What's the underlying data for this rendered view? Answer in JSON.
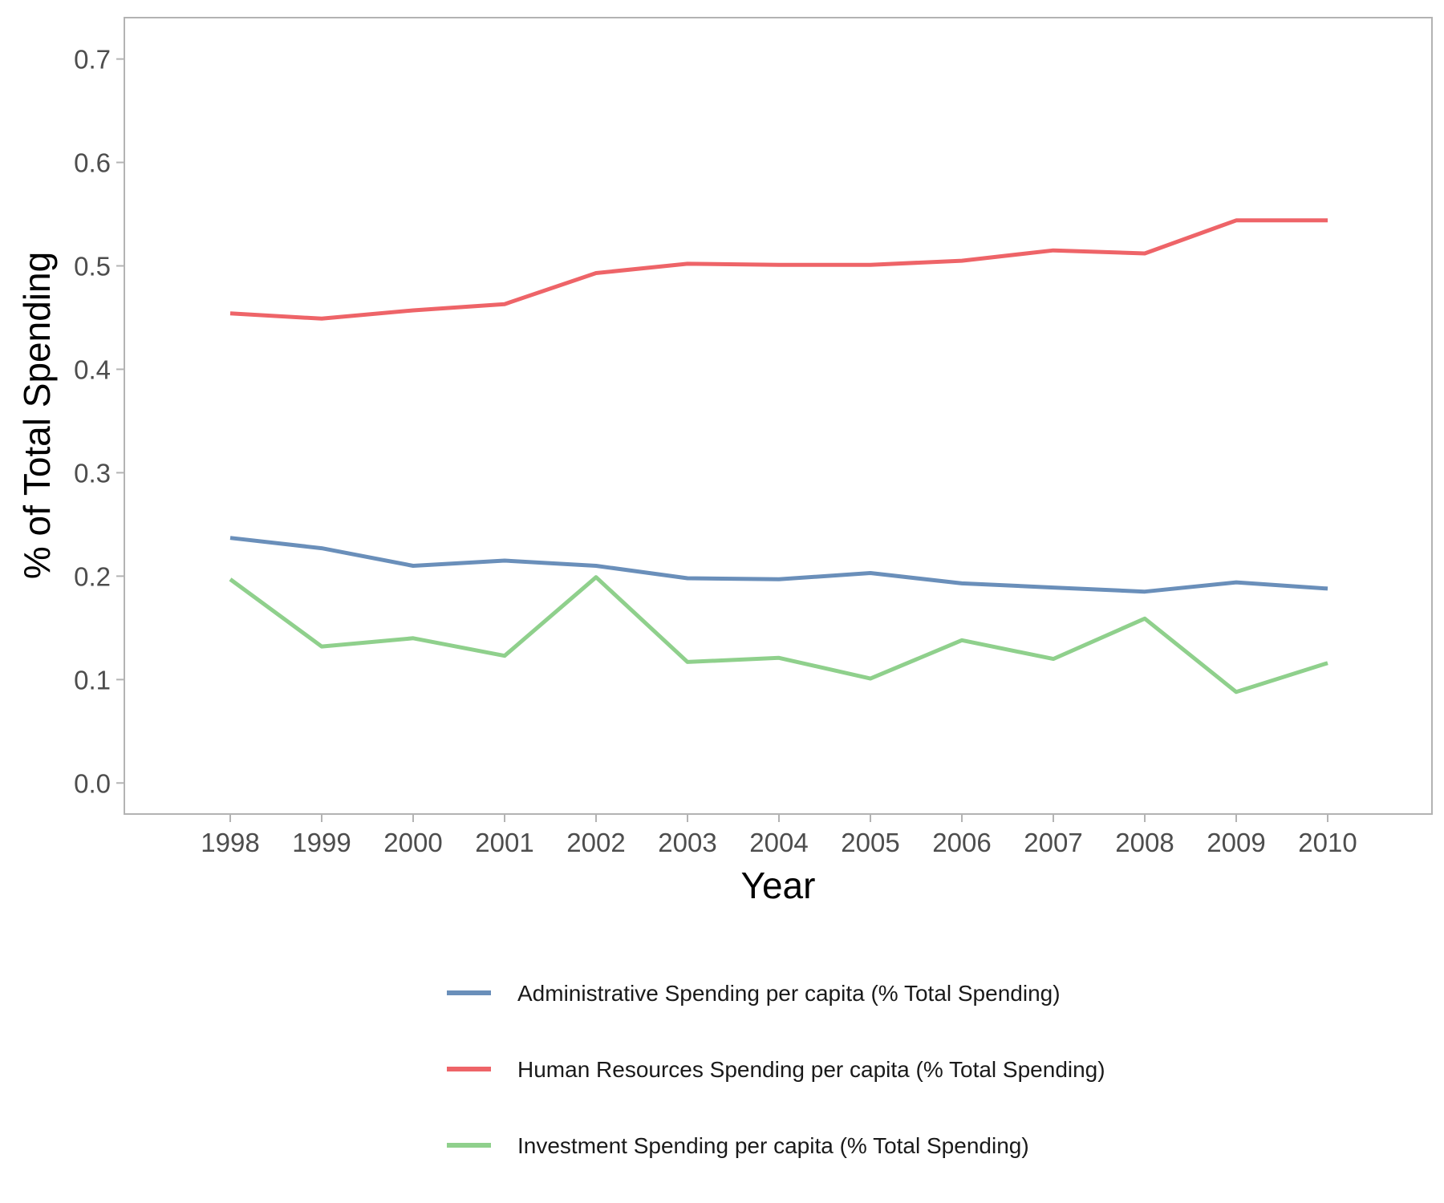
{
  "chart_data": {
    "type": "line",
    "title": "",
    "xlabel": "Year",
    "ylabel": "% of Total Spending",
    "x": [
      "1998",
      "1999",
      "2000",
      "2001",
      "2002",
      "2003",
      "2004",
      "2005",
      "2006",
      "2007",
      "2008",
      "2009",
      "2010"
    ],
    "ylim": [
      -0.03,
      0.74
    ],
    "yticks": [
      "0.0",
      "0.1",
      "0.2",
      "0.3",
      "0.4",
      "0.5",
      "0.6",
      "0.7"
    ],
    "grid": false,
    "legend_position": "bottom",
    "series": [
      {
        "name": "Administrative Spending per capita (% Total Spending)",
        "color": "#6a8fba",
        "values": [
          0.237,
          0.227,
          0.21,
          0.215,
          0.21,
          0.198,
          0.197,
          0.203,
          0.193,
          0.189,
          0.185,
          0.194,
          0.188
        ]
      },
      {
        "name": "Human Resources Spending per capita (% Total Spending)",
        "color": "#ee6468",
        "values": [
          0.454,
          0.449,
          0.457,
          0.463,
          0.493,
          0.502,
          0.501,
          0.501,
          0.505,
          0.515,
          0.512,
          0.544,
          0.544
        ]
      },
      {
        "name": "Investment Spending per capita (% Total Spending)",
        "color": "#8fd08c",
        "values": [
          0.197,
          0.132,
          0.14,
          0.123,
          0.199,
          0.117,
          0.121,
          0.101,
          0.138,
          0.12,
          0.159,
          0.088,
          0.116
        ]
      }
    ]
  }
}
